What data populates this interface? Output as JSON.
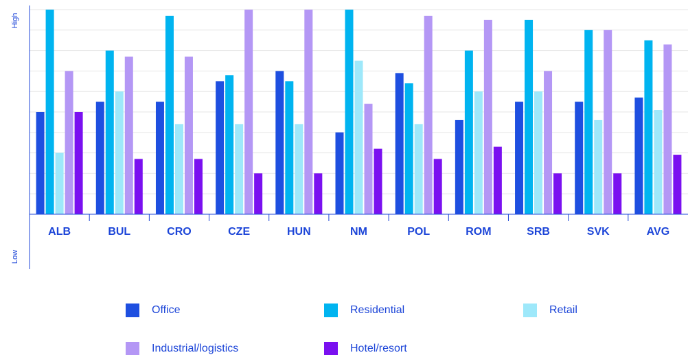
{
  "chart_data": {
    "type": "bar",
    "y_high_label": "High",
    "y_low_label": "Low",
    "categories": [
      "ALB",
      "BUL",
      "CRO",
      "CZE",
      "HUN",
      "NM",
      "POL",
      "ROM",
      "SRB",
      "SVK",
      "AVG"
    ],
    "series": [
      {
        "name": "Office",
        "color": "#1e4fe0",
        "values": [
          5.0,
          5.5,
          5.5,
          6.5,
          7.0,
          4.0,
          6.9,
          4.6,
          5.5,
          5.5,
          5.7
        ]
      },
      {
        "name": "Residential",
        "color": "#00b4f0",
        "values": [
          10,
          8.0,
          9.7,
          6.8,
          6.5,
          10,
          6.4,
          8.0,
          9.5,
          9.0,
          8.5
        ]
      },
      {
        "name": "Retail",
        "color": "#9ee8fa",
        "values": [
          3.0,
          6.0,
          4.4,
          4.4,
          4.4,
          7.5,
          4.4,
          6.0,
          6.0,
          4.6,
          5.1
        ]
      },
      {
        "name": "Industrial/logistics",
        "color": "#b497f5",
        "values": [
          7.0,
          7.7,
          7.7,
          10,
          10,
          5.4,
          9.7,
          9.5,
          7.0,
          9.0,
          8.3
        ]
      },
      {
        "name": "Hotel/resort",
        "color": "#7a10f0",
        "values": [
          5.0,
          2.7,
          2.7,
          2.0,
          2.0,
          3.2,
          2.7,
          3.3,
          2.0,
          2.0,
          2.9
        ]
      }
    ],
    "ylim": [
      0,
      10
    ],
    "yticks": [
      0,
      1,
      2,
      3,
      4,
      5,
      6,
      7,
      8,
      9,
      10
    ],
    "grid": true
  }
}
